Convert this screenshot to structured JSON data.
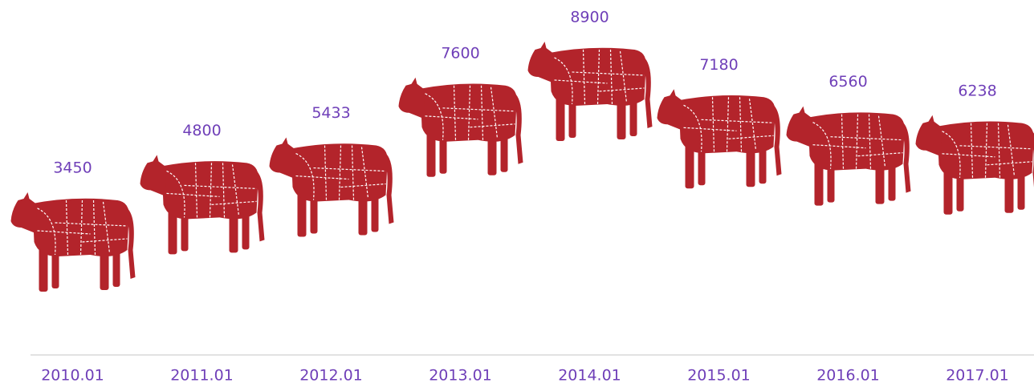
{
  "chart_data": {
    "type": "pictograph",
    "categories": [
      "2010.01",
      "2011.01",
      "2012.01",
      "2013.01",
      "2014.01",
      "2015.01",
      "2016.01",
      "2017.01"
    ],
    "values": [
      3450,
      4800,
      5433,
      7600,
      8900,
      7180,
      6560,
      6238
    ],
    "color": "#b3242b"
  }
}
